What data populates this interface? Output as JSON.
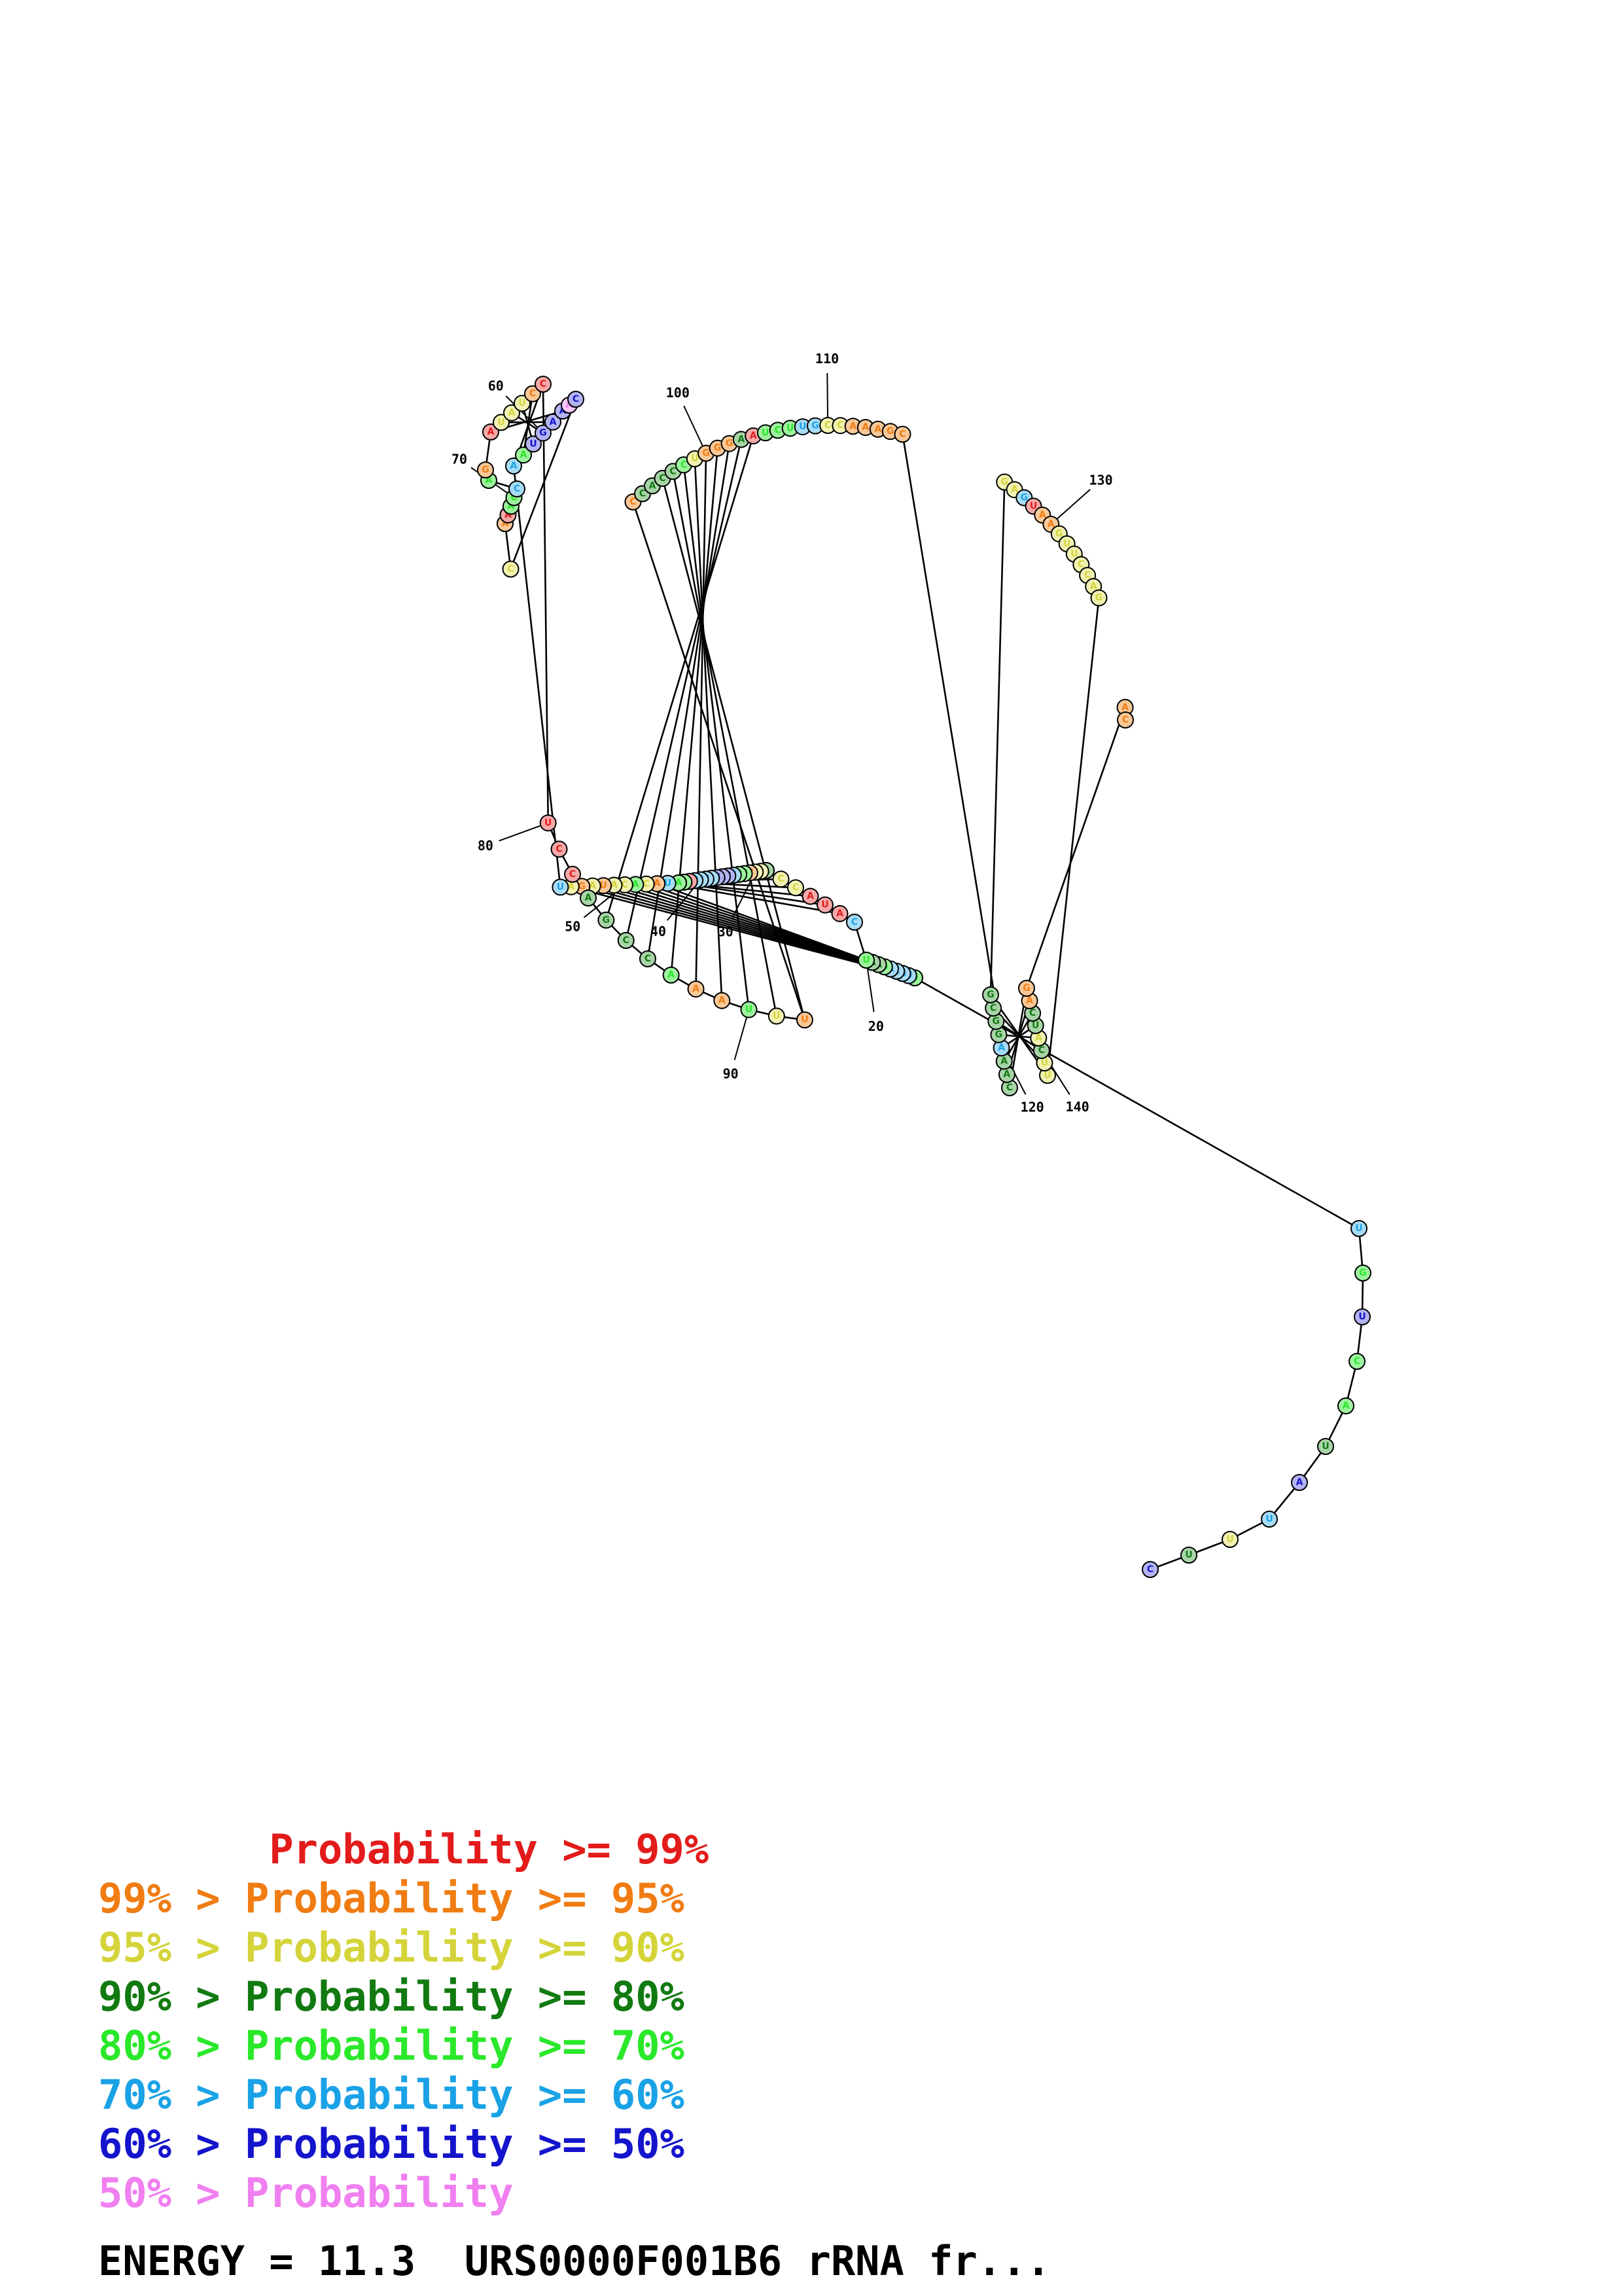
{
  "sequence": "CUUUAUACUGUUUGCAGAAUCAUACCAAAGUUCCCAGAUCUAGCAUACACAUAGAUAAUGAAACCUAAACCAGAUAUCCUCCAGCCAAAUUUCCACCCUGGGAAUCUUGCCAAAGCCAAAGGCGGAGUAAGUUCCAGUUCAUCAGAC",
  "probability_classes": "7436745575656666544561113354332556777666615556235332323665777787332155652133321111444452253224444532224155566332222244464444336122333333333434422222",
  "class_colors": [
    "#e31b1b",
    "#f07c12",
    "#d4d43a",
    "#117a11",
    "#2ae82a",
    "#1aa2e6",
    "#1414cc",
    "#f07ff0"
  ],
  "class_fills": [
    "#f4a9a9",
    "#f8c898",
    "#f2f2b4",
    "#a8d4a8",
    "#9ef29e",
    "#a8dcf4",
    "#b4b4f2",
    "#f8c8f8"
  ],
  "base_pairs": [
    [
      12,
      55
    ],
    [
      13,
      54
    ],
    [
      14,
      53
    ],
    [
      15,
      52
    ],
    [
      16,
      51
    ],
    [
      17,
      50
    ],
    [
      18,
      49
    ],
    [
      19,
      48
    ],
    [
      20,
      47
    ],
    [
      22,
      46
    ],
    [
      23,
      45
    ],
    [
      24,
      44
    ],
    [
      25,
      43
    ],
    [
      26,
      42
    ],
    [
      27,
      41
    ],
    [
      28,
      40
    ],
    [
      29,
      39
    ],
    [
      30,
      38
    ],
    [
      31,
      36
    ],
    [
      32,
      35
    ],
    [
      57,
      79
    ],
    [
      58,
      78
    ],
    [
      59,
      77
    ],
    [
      60,
      76
    ],
    [
      61,
      75
    ],
    [
      62,
      74
    ],
    [
      84,
      104
    ],
    [
      85,
      103
    ],
    [
      86,
      102
    ],
    [
      87,
      101
    ],
    [
      88,
      100
    ],
    [
      89,
      99
    ],
    [
      90,
      98
    ],
    [
      91,
      97
    ],
    [
      92,
      96
    ],
    [
      117,
      145
    ],
    [
      118,
      144
    ],
    [
      119,
      143
    ],
    [
      120,
      142
    ],
    [
      121,
      141
    ],
    [
      122,
      140
    ],
    [
      123,
      139
    ],
    [
      124,
      138
    ]
  ],
  "number_labels": [
    "20",
    "30",
    "40",
    "50",
    "60",
    "70",
    "80",
    "90",
    "100",
    "110",
    "120",
    "130",
    "140"
  ],
  "legend": [
    {
      "prefix": "       ",
      "text": "Probability >= 99%",
      "color": "#e31b1b"
    },
    {
      "prefix": "99% > ",
      "text": "Probability >= 95%",
      "color": "#f07c12"
    },
    {
      "prefix": "95% > ",
      "text": "Probability >= 90%",
      "color": "#d4d43a"
    },
    {
      "prefix": "90% > ",
      "text": "Probability >= 80%",
      "color": "#117a11"
    },
    {
      "prefix": "80% > ",
      "text": "Probability >= 70%",
      "color": "#2ae82a"
    },
    {
      "prefix": "70% > ",
      "text": "Probability >= 60%",
      "color": "#1aa2e6"
    },
    {
      "prefix": "60% > ",
      "text": "Probability >= 50%",
      "color": "#1414cc"
    },
    {
      "prefix": "50% > ",
      "text": "Probability",
      "color": "#f07ff0"
    }
  ],
  "energy_text": "ENERGY = 11.3  URS0000F001B6 rRNA fr..."
}
